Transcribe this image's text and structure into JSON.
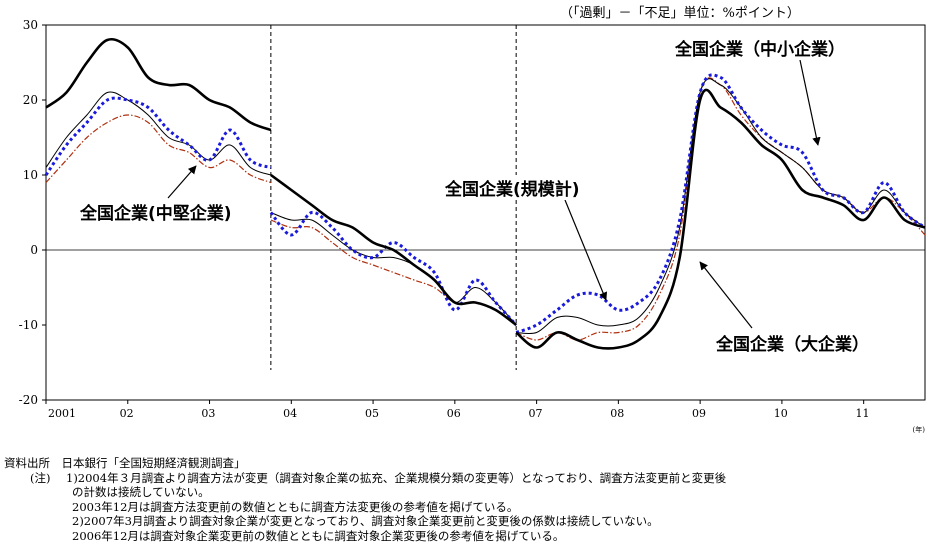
{
  "unit_note": "（「過剰」－「不足」単位：%ポイント）",
  "callouts": {
    "sme": "全国企業（中小企業）",
    "midsize": "全国企業(中堅企業)",
    "total": "全国企業(規模計)",
    "large": "全国企業（大企業）"
  },
  "notes": {
    "source_head": "資料出所",
    "source": "日本銀行「全国短期経済観測調査」",
    "note_head": "(注)",
    "note1a": "1)2004年３月調査より調査方法が変更（調査対象企業の拡充、企業規模分類の変更等）となっており、調査方法変更前と変更後",
    "note1b": "の計数は接続していない。",
    "note1c": "2003年12月は調査方法変更前の数値とともに調査方法変更後の参考値を掲げている。",
    "note2a": "2)2007年3月調査より調査対象企業が変更となっており、調査対象企業変更前と変更後の係数は接続していない。",
    "note2b": "2006年12月は調査対象企業変更前の数値とともに調査対象企業変更後の参考値を掲げている。"
  },
  "chart_data": {
    "type": "line",
    "x_unit": "(年)",
    "x_tick_labels": [
      "2001",
      "02",
      "03",
      "04",
      "05",
      "06",
      "07",
      "08",
      "09",
      "10",
      "11"
    ],
    "ylim": [
      -20,
      30
    ],
    "y_ticks": [
      -20,
      -10,
      0,
      10,
      20,
      30
    ],
    "xlim": [
      2001.0,
      2011.75
    ],
    "break_lines": [
      2003.75,
      2006.75
    ],
    "grid": false,
    "series": [
      {
        "name": "全国企業（大企業）",
        "color": "#000000",
        "style": "thick",
        "segments": [
          {
            "x": [
              2001.0,
              2001.25,
              2001.5,
              2001.75,
              2002.0,
              2002.25,
              2002.5,
              2002.75,
              2003.0,
              2003.25,
              2003.5,
              2003.75
            ],
            "y": [
              19,
              21,
              25,
              28,
              27,
              23,
              22,
              22,
              20,
              19,
              17,
              16
            ]
          },
          {
            "x": [
              2003.75,
              2004.0,
              2004.25,
              2004.5,
              2004.75,
              2005.0,
              2005.25,
              2005.5,
              2005.75,
              2006.0,
              2006.25,
              2006.5,
              2006.75
            ],
            "y": [
              10,
              8,
              6,
              4,
              3,
              1,
              0,
              -2,
              -4,
              -7,
              -7,
              -8,
              -10
            ]
          },
          {
            "x": [
              2006.75,
              2007.0,
              2007.25,
              2007.5,
              2007.75,
              2008.0,
              2008.25,
              2008.5,
              2008.75,
              2009.0,
              2009.25,
              2009.5,
              2009.75,
              2010.0,
              2010.25,
              2010.5,
              2010.75,
              2011.0,
              2011.25,
              2011.5,
              2011.75
            ],
            "y": [
              -11,
              -13,
              -11,
              -12,
              -13,
              -13,
              -12,
              -9,
              -1,
              20,
              19,
              17,
              14,
              12,
              8,
              7,
              6,
              4,
              7,
              4,
              3
            ]
          }
        ]
      },
      {
        "name": "全国企業（中小企業）",
        "color": "#1a1adb",
        "style": "dotted",
        "segments": [
          {
            "x": [
              2001.0,
              2001.25,
              2001.5,
              2001.75,
              2002.0,
              2002.25,
              2002.5,
              2002.75,
              2003.0,
              2003.25,
              2003.5,
              2003.75
            ],
            "y": [
              10,
              14,
              17,
              20,
              20,
              19,
              16,
              14,
              12,
              16,
              12,
              11
            ]
          },
          {
            "x": [
              2003.75,
              2004.0,
              2004.25,
              2004.5,
              2004.75,
              2005.0,
              2005.25,
              2005.5,
              2005.75,
              2006.0,
              2006.25,
              2006.5,
              2006.75
            ],
            "y": [
              5,
              2,
              5,
              3,
              0,
              -1,
              1,
              -1,
              -3,
              -8,
              -4,
              -7,
              -10
            ]
          },
          {
            "x": [
              2006.75,
              2007.0,
              2007.25,
              2007.5,
              2007.75,
              2008.0,
              2008.25,
              2008.5,
              2008.75,
              2009.0,
              2009.25,
              2009.5,
              2009.75,
              2010.0,
              2010.25,
              2010.5,
              2010.75,
              2011.0,
              2011.25,
              2011.5,
              2011.75
            ],
            "y": [
              -11,
              -10,
              -8,
              -6,
              -6,
              -8,
              -7,
              -4,
              4,
              21,
              23,
              19,
              16,
              14,
              13,
              8,
              7,
              5,
              9,
              5,
              3
            ]
          }
        ]
      },
      {
        "name": "全国企業(中堅企業)",
        "color": "#b03010",
        "style": "dashdot",
        "segments": [
          {
            "x": [
              2001.0,
              2001.25,
              2001.5,
              2001.75,
              2002.0,
              2002.25,
              2002.5,
              2002.75,
              2003.0,
              2003.25,
              2003.5,
              2003.75
            ],
            "y": [
              9,
              12,
              15,
              17,
              18,
              17,
              14,
              13,
              11,
              12,
              10,
              9
            ]
          },
          {
            "x": [
              2003.75,
              2004.0,
              2004.25,
              2004.5,
              2004.75,
              2005.0,
              2005.25,
              2005.5,
              2005.75,
              2006.0,
              2006.25,
              2006.5,
              2006.75
            ],
            "y": [
              4,
              3,
              3,
              1,
              -1,
              -2,
              -3,
              -4,
              -5,
              -7,
              -7,
              -8,
              -10
            ]
          },
          {
            "x": [
              2006.75,
              2007.0,
              2007.25,
              2007.5,
              2007.75,
              2008.0,
              2008.25,
              2008.5,
              2008.75,
              2009.0,
              2009.25,
              2009.5,
              2009.75,
              2010.0,
              2010.25,
              2010.5,
              2010.75,
              2011.0,
              2011.25,
              2011.5,
              2011.75
            ],
            "y": [
              -11,
              -12,
              -11,
              -12,
              -11,
              -11,
              -10,
              -6,
              2,
              21,
              22,
              18,
              15,
              13,
              11,
              8,
              7,
              5,
              7,
              5,
              2
            ]
          }
        ]
      },
      {
        "name": "全国企業(規模計)",
        "color": "#000000",
        "style": "thin",
        "segments": [
          {
            "x": [
              2001.0,
              2001.25,
              2001.5,
              2001.75,
              2002.0,
              2002.25,
              2002.5,
              2002.75,
              2003.0,
              2003.25,
              2003.5,
              2003.75
            ],
            "y": [
              11,
              15,
              18,
              21,
              20,
              18,
              15,
              14,
              12,
              14,
              11,
              10
            ]
          },
          {
            "x": [
              2003.75,
              2004.0,
              2004.25,
              2004.5,
              2004.75,
              2005.0,
              2005.25,
              2005.5,
              2005.75,
              2006.0,
              2006.25,
              2006.5,
              2006.75
            ],
            "y": [
              5,
              4,
              4,
              2,
              0,
              -1,
              -1,
              -2,
              -4,
              -7,
              -5,
              -7,
              -10
            ]
          },
          {
            "x": [
              2006.75,
              2007.0,
              2007.25,
              2007.5,
              2007.75,
              2008.0,
              2008.25,
              2008.5,
              2008.75,
              2009.0,
              2009.25,
              2009.5,
              2009.75,
              2010.0,
              2010.25,
              2010.5,
              2010.75,
              2011.0,
              2011.25,
              2011.5,
              2011.75
            ],
            "y": [
              -11,
              -11,
              -9,
              -9,
              -10,
              -10,
              -9,
              -5,
              3,
              21,
              22,
              19,
              15,
              13,
              11,
              8,
              7,
              5,
              8,
              5,
              3
            ]
          }
        ]
      }
    ]
  }
}
